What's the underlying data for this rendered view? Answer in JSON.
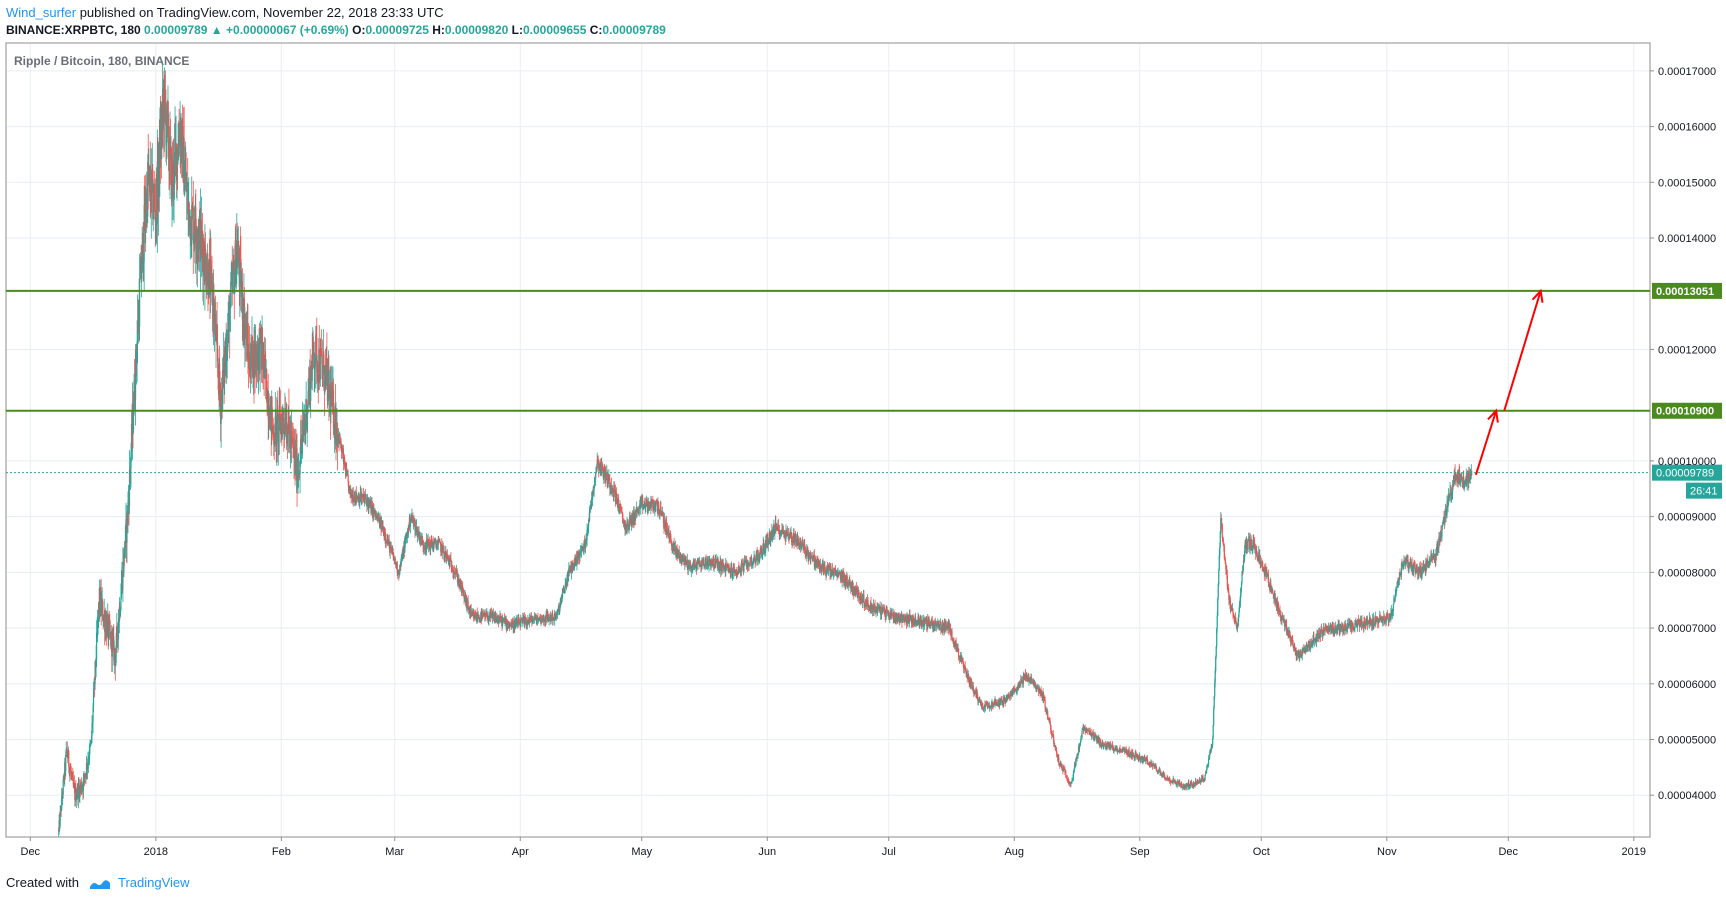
{
  "header": {
    "author": "Wind_surfer",
    "published": "published on TradingView.com, November 22, 2018 23:33 UTC"
  },
  "symbol_line": {
    "symbol": "BINANCE:XRPBTC, 180",
    "last": "0.00009789",
    "change": "+0.00000067 (+0.69%)",
    "o_label": "O:",
    "o": "0.00009725",
    "h_label": "H:",
    "h": "0.00009820",
    "l_label": "L:",
    "l": "0.00009655",
    "c_label": "C:",
    "c": "0.00009789"
  },
  "footer": {
    "created_with": "Created with",
    "brand": "TradingView"
  },
  "colors": {
    "up": "#26a69a",
    "down": "#ef5350",
    "level": "#4a8a1f",
    "arrow": "#ff0000",
    "grid": "#e6eef3",
    "price_line": "#26a69a"
  },
  "chart_data": {
    "type": "candlestick",
    "title": "Ripple / Bitcoin, 180, BINANCE",
    "x_ticks": [
      "Dec",
      "2018",
      "Feb",
      "Mar",
      "Apr",
      "May",
      "Jun",
      "Jul",
      "Aug",
      "Sep",
      "Oct",
      "Nov",
      "Dec",
      "2019"
    ],
    "y_ticks": [
      "0.00004000",
      "0.00005000",
      "0.00006000",
      "0.00007000",
      "0.00008000",
      "0.00009000",
      "0.00010000",
      "0.00012000",
      "0.00014000",
      "0.00015000",
      "0.00016000",
      "0.00017000"
    ],
    "ylim": [
      3.25e-05,
      0.000175
    ],
    "xlim": [
      "2017-11-25",
      "2019-01-05"
    ],
    "horizontal_levels": [
      {
        "value": 0.00013051,
        "label": "0.00013051"
      },
      {
        "value": 0.000109,
        "label": "0.00010900"
      }
    ],
    "current_price": {
      "value": 9.789e-05,
      "label": "0.00009789",
      "countdown": "26:41"
    },
    "price_path": [
      [
        "2017-12-08",
        3.35e-05
      ],
      [
        "2017-12-10",
        4.8e-05
      ],
      [
        "2017-12-12",
        4e-05
      ],
      [
        "2017-12-14",
        4.2e-05
      ],
      [
        "2017-12-16",
        4.9e-05
      ],
      [
        "2017-12-18",
        7.5e-05
      ],
      [
        "2017-12-20",
        7e-05
      ],
      [
        "2017-12-22",
        6.5e-05
      ],
      [
        "2017-12-25",
        9e-05
      ],
      [
        "2017-12-28",
        0.00013
      ],
      [
        "2017-12-30",
        0.00015
      ],
      [
        "2018-01-01",
        0.000145
      ],
      [
        "2018-01-03",
        0.000165
      ],
      [
        "2018-01-05",
        0.00015
      ],
      [
        "2018-01-07",
        0.00016
      ],
      [
        "2018-01-09",
        0.000145
      ],
      [
        "2018-01-12",
        0.00014
      ],
      [
        "2018-01-15",
        0.00013
      ],
      [
        "2018-01-17",
        0.00011
      ],
      [
        "2018-01-19",
        0.000125
      ],
      [
        "2018-01-21",
        0.000138
      ],
      [
        "2018-01-24",
        0.000118
      ],
      [
        "2018-01-27",
        0.00012
      ],
      [
        "2018-01-30",
        0.000105
      ],
      [
        "2018-02-02",
        0.000108
      ],
      [
        "2018-02-05",
        9.8e-05
      ],
      [
        "2018-02-07",
        0.000108
      ],
      [
        "2018-02-09",
        0.00012
      ],
      [
        "2018-02-12",
        0.000115
      ],
      [
        "2018-02-15",
        0.000105
      ],
      [
        "2018-02-18",
        9.4e-05
      ],
      [
        "2018-02-22",
        9.3e-05
      ],
      [
        "2018-02-26",
        8.8e-05
      ],
      [
        "2018-03-02",
        8e-05
      ],
      [
        "2018-03-05",
        9e-05
      ],
      [
        "2018-03-08",
        8.5e-05
      ],
      [
        "2018-03-12",
        8.5e-05
      ],
      [
        "2018-03-16",
        8e-05
      ],
      [
        "2018-03-20",
        7.2e-05
      ],
      [
        "2018-03-25",
        7.2e-05
      ],
      [
        "2018-03-30",
        7.05e-05
      ],
      [
        "2018-04-04",
        7.15e-05
      ],
      [
        "2018-04-10",
        7.2e-05
      ],
      [
        "2018-04-13",
        8e-05
      ],
      [
        "2018-04-17",
        8.5e-05
      ],
      [
        "2018-04-20",
        0.0001
      ],
      [
        "2018-04-24",
        9.5e-05
      ],
      [
        "2018-04-27",
        8.8e-05
      ],
      [
        "2018-05-01",
        9.2e-05
      ],
      [
        "2018-05-05",
        9.2e-05
      ],
      [
        "2018-05-09",
        8.4e-05
      ],
      [
        "2018-05-13",
        8.1e-05
      ],
      [
        "2018-05-18",
        8.2e-05
      ],
      [
        "2018-05-24",
        8e-05
      ],
      [
        "2018-05-30",
        8.3e-05
      ],
      [
        "2018-06-03",
        8.8e-05
      ],
      [
        "2018-06-08",
        8.6e-05
      ],
      [
        "2018-06-14",
        8.1e-05
      ],
      [
        "2018-06-20",
        7.9e-05
      ],
      [
        "2018-06-26",
        7.4e-05
      ],
      [
        "2018-07-03",
        7.2e-05
      ],
      [
        "2018-07-10",
        7.1e-05
      ],
      [
        "2018-07-16",
        7e-05
      ],
      [
        "2018-07-20",
        6.2e-05
      ],
      [
        "2018-07-24",
        5.6e-05
      ],
      [
        "2018-07-30",
        5.7e-05
      ],
      [
        "2018-08-04",
        6.15e-05
      ],
      [
        "2018-08-08",
        5.8e-05
      ],
      [
        "2018-08-12",
        4.6e-05
      ],
      [
        "2018-08-15",
        4.2e-05
      ],
      [
        "2018-08-18",
        5.2e-05
      ],
      [
        "2018-08-23",
        4.9e-05
      ],
      [
        "2018-08-28",
        4.8e-05
      ],
      [
        "2018-09-03",
        4.6e-05
      ],
      [
        "2018-09-08",
        4.3e-05
      ],
      [
        "2018-09-12",
        4.15e-05
      ],
      [
        "2018-09-17",
        4.3e-05
      ],
      [
        "2018-09-19",
        5e-05
      ],
      [
        "2018-09-21",
        9e-05
      ],
      [
        "2018-09-23",
        7.5e-05
      ],
      [
        "2018-09-25",
        7e-05
      ],
      [
        "2018-09-27",
        8.5e-05
      ],
      [
        "2018-09-29",
        8.5e-05
      ],
      [
        "2018-10-02",
        8e-05
      ],
      [
        "2018-10-06",
        7.2e-05
      ],
      [
        "2018-10-10",
        6.5e-05
      ],
      [
        "2018-10-13",
        6.7e-05
      ],
      [
        "2018-10-17",
        7e-05
      ],
      [
        "2018-10-22",
        7e-05
      ],
      [
        "2018-10-27",
        7.1e-05
      ],
      [
        "2018-11-02",
        7.2e-05
      ],
      [
        "2018-11-05",
        8.2e-05
      ],
      [
        "2018-11-09",
        8e-05
      ],
      [
        "2018-11-13",
        8.3e-05
      ],
      [
        "2018-11-16",
        9.2e-05
      ],
      [
        "2018-11-18",
        9.8e-05
      ],
      [
        "2018-11-20",
        9.6e-05
      ],
      [
        "2018-11-22",
        9.79e-05
      ]
    ],
    "projection_arrows": [
      {
        "from": [
          "2018-11-23",
          9.75e-05
        ],
        "to": [
          "2018-11-28",
          0.000109
        ]
      },
      {
        "from": [
          "2018-11-30",
          0.000109
        ],
        "to": [
          "2018-12-09",
          0.00013051
        ]
      }
    ]
  }
}
